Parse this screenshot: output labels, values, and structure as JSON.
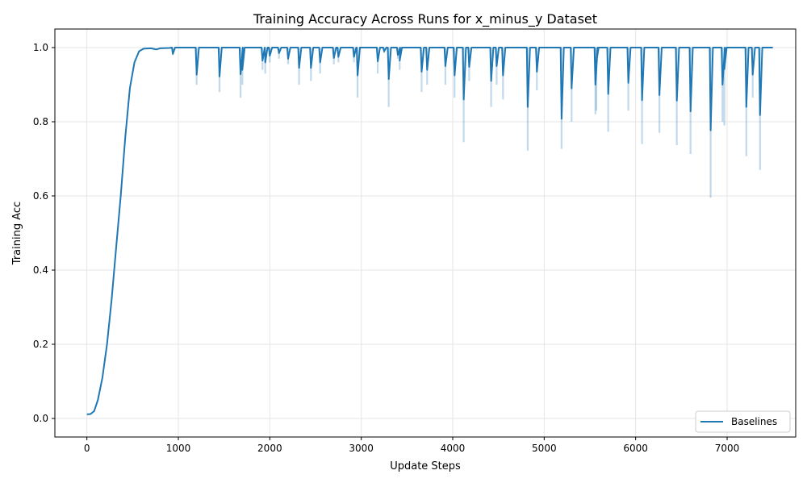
{
  "chart_data": {
    "type": "line",
    "title": "Training Accuracy Across Runs for x_minus_y Dataset",
    "xlabel": "Update Steps",
    "ylabel": "Training Acc",
    "xlim": [
      -350,
      7750
    ],
    "ylim": [
      -0.05,
      1.05
    ],
    "xticks": [
      0,
      1000,
      2000,
      3000,
      4000,
      5000,
      6000,
      7000
    ],
    "yticks": [
      0.0,
      0.2,
      0.4,
      0.6,
      0.8,
      1.0
    ],
    "xtick_labels": [
      "0",
      "1000",
      "2000",
      "3000",
      "4000",
      "5000",
      "6000",
      "7000"
    ],
    "ytick_labels": [
      "0.0",
      "0.2",
      "0.4",
      "0.6",
      "0.8",
      "1.0"
    ],
    "grid": true,
    "legend_position": "bottom-right",
    "series": [
      {
        "name": "Baselines",
        "color": "#1f77b4",
        "band_color": "#1f77b4",
        "rise": [
          [
            0,
            0.011
          ],
          [
            40,
            0.012
          ],
          [
            80,
            0.02
          ],
          [
            120,
            0.05
          ],
          [
            170,
            0.11
          ],
          [
            220,
            0.2
          ],
          [
            270,
            0.32
          ],
          [
            320,
            0.46
          ],
          [
            370,
            0.6
          ],
          [
            420,
            0.76
          ],
          [
            470,
            0.89
          ],
          [
            520,
            0.96
          ],
          [
            570,
            0.99
          ],
          [
            620,
            0.997
          ],
          [
            700,
            0.998
          ],
          [
            760,
            0.995
          ],
          [
            800,
            0.998
          ],
          [
            900,
            0.999
          ]
        ],
        "plateau": 1.0,
        "end_step": 7500,
        "dips": [
          [
            940,
            0.983,
            0.98
          ],
          [
            1200,
            0.927,
            0.9
          ],
          [
            1450,
            0.922,
            0.88
          ],
          [
            1680,
            0.928,
            0.865
          ],
          [
            1700,
            0.94,
            0.9
          ],
          [
            1920,
            0.965,
            0.94
          ],
          [
            1950,
            0.96,
            0.93
          ],
          [
            2000,
            0.978,
            0.96
          ],
          [
            2100,
            0.985,
            0.97
          ],
          [
            2200,
            0.97,
            0.955
          ],
          [
            2320,
            0.945,
            0.9
          ],
          [
            2450,
            0.945,
            0.91
          ],
          [
            2550,
            0.96,
            0.93
          ],
          [
            2700,
            0.972,
            0.955
          ],
          [
            2750,
            0.975,
            0.96
          ],
          [
            2920,
            0.975,
            0.96
          ],
          [
            2960,
            0.925,
            0.865
          ],
          [
            3180,
            0.963,
            0.93
          ],
          [
            3250,
            0.99,
            0.985
          ],
          [
            3300,
            0.915,
            0.84
          ],
          [
            3400,
            0.98,
            0.97
          ],
          [
            3420,
            0.965,
            0.94
          ],
          [
            3660,
            0.935,
            0.88
          ],
          [
            3720,
            0.94,
            0.9
          ],
          [
            3920,
            0.95,
            0.9
          ],
          [
            4020,
            0.925,
            0.865
          ],
          [
            4120,
            0.86,
            0.745
          ],
          [
            4180,
            0.948,
            0.91
          ],
          [
            4420,
            0.91,
            0.84
          ],
          [
            4480,
            0.95,
            0.9
          ],
          [
            4550,
            0.925,
            0.86
          ],
          [
            4820,
            0.84,
            0.722
          ],
          [
            4920,
            0.935,
            0.885
          ],
          [
            5190,
            0.808,
            0.727
          ],
          [
            5300,
            0.89,
            0.8
          ],
          [
            5560,
            0.9,
            0.82
          ],
          [
            5570,
            0.96,
            0.83
          ],
          [
            5700,
            0.875,
            0.773
          ],
          [
            5920,
            0.905,
            0.83
          ],
          [
            6070,
            0.858,
            0.74
          ],
          [
            6260,
            0.872,
            0.77
          ],
          [
            6450,
            0.857,
            0.737
          ],
          [
            6600,
            0.828,
            0.713
          ],
          [
            6820,
            0.777,
            0.595
          ],
          [
            6950,
            0.9,
            0.8
          ],
          [
            6970,
            0.942,
            0.79
          ],
          [
            7210,
            0.84,
            0.707
          ],
          [
            7280,
            0.927,
            0.865
          ],
          [
            7360,
            0.818,
            0.67
          ]
        ]
      }
    ]
  }
}
